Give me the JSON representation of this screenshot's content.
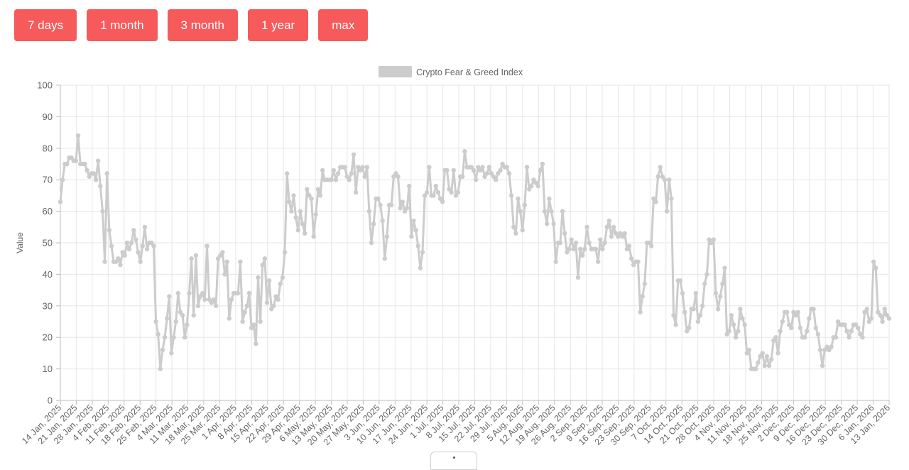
{
  "range_buttons": [
    "7 days",
    "1 month",
    "3 month",
    "1 year",
    "max"
  ],
  "colors": {
    "button_bg": "#f65a5b",
    "button_text": "#ffffff",
    "series_line": "#cccccc",
    "grid": "#e6e6e6",
    "axis_text": "#666666"
  },
  "chart_data": {
    "type": "line",
    "title": "",
    "legend": {
      "label": "Crypto Fear & Greed Index",
      "position": "top-center"
    },
    "xlabel": "",
    "ylabel": "Value",
    "ylim": [
      0,
      100
    ],
    "yticks": [
      0,
      10,
      20,
      30,
      40,
      50,
      60,
      70,
      80,
      90,
      100
    ],
    "grid": true,
    "xtick_labels": [
      "14 Jan, 2025",
      "21 Jan, 2025",
      "28 Jan, 2025",
      "4 Feb, 2025",
      "11 Feb, 2025",
      "18 Feb, 2025",
      "25 Feb, 2025",
      "4 Mar, 2025",
      "11 Mar, 2025",
      "18 Mar, 2025",
      "25 Mar, 2025",
      "1 Apr, 2025",
      "8 Apr, 2025",
      "15 Apr, 2025",
      "22 Apr, 2025",
      "29 Apr, 2025",
      "6 May, 2025",
      "13 May, 2025",
      "20 May, 2025",
      "27 May, 2025",
      "3 Jun, 2025",
      "10 Jun, 2025",
      "17 Jun, 2025",
      "24 Jun, 2025",
      "1 Jul, 2025",
      "8 Jul, 2025",
      "15 Jul, 2025",
      "22 Jul, 2025",
      "29 Jul, 2025",
      "5 Aug, 2025",
      "12 Aug, 2025",
      "19 Aug, 2025",
      "26 Aug, 2025",
      "2 Sep, 2025",
      "9 Sep, 2025",
      "16 Sep, 2025",
      "23 Sep, 2025",
      "30 Sep, 2025",
      "7 Oct, 2025",
      "14 Oct, 2025",
      "21 Oct, 2025",
      "28 Oct, 2025",
      "4 Nov, 2025",
      "11 Nov, 2025",
      "18 Nov, 2025",
      "25 Nov, 2025",
      "2 Dec, 2025",
      "9 Dec, 2025",
      "16 Dec, 2025",
      "23 Dec, 2025",
      "30 Dec, 2025",
      "6 Jan, 2026",
      "13 Jan, 2026"
    ],
    "series": [
      {
        "name": "Crypto Fear & Greed Index",
        "values": [
          63,
          70,
          75,
          75,
          77,
          77,
          76,
          76,
          84,
          75,
          75,
          75,
          73,
          71,
          72,
          72,
          70,
          76,
          68,
          60,
          44,
          72,
          54,
          49,
          44,
          44,
          45,
          43,
          47,
          46,
          50,
          48,
          50,
          54,
          51,
          47,
          44,
          49,
          55,
          48,
          50,
          50,
          49,
          25,
          21,
          10,
          16,
          20,
          26,
          33,
          15,
          20,
          25,
          34,
          28,
          27,
          20,
          24,
          34,
          45,
          27,
          46,
          30,
          33,
          34,
          32,
          49,
          32,
          31,
          32,
          30,
          45,
          46,
          47,
          40,
          44,
          26,
          32,
          34,
          34,
          34,
          44,
          25,
          28,
          30,
          34,
          23,
          24,
          18,
          39,
          25,
          43,
          45,
          31,
          38,
          29,
          30,
          33,
          32,
          37,
          39,
          47,
          72,
          63,
          60,
          65,
          58,
          54,
          60,
          56,
          53,
          67,
          65,
          64,
          52,
          59,
          67,
          65,
          73,
          70,
          70,
          70,
          70,
          73,
          70,
          72,
          74,
          74,
          74,
          71,
          70,
          72,
          78,
          66,
          74,
          73,
          74,
          71,
          74,
          60,
          50,
          56,
          64,
          64,
          62,
          57,
          45,
          52,
          62,
          62,
          71,
          72,
          71,
          61,
          63,
          60,
          61,
          68,
          52,
          57,
          54,
          49,
          42,
          47,
          65,
          66,
          74,
          65,
          65,
          68,
          66,
          64,
          63,
          73,
          73,
          67,
          66,
          73,
          65,
          66,
          71,
          71,
          79,
          74,
          74,
          74,
          73,
          70,
          74,
          73,
          74,
          71,
          72,
          74,
          72,
          71,
          70,
          72,
          73,
          75,
          74,
          74,
          72,
          65,
          55,
          53,
          64,
          60,
          54,
          62,
          74,
          67,
          68,
          70,
          69,
          68,
          73,
          75,
          60,
          56,
          64,
          60,
          56,
          44,
          50,
          50,
          60,
          53,
          47,
          48,
          51,
          48,
          50,
          39,
          48,
          46,
          48,
          55,
          50,
          48,
          48,
          48,
          44,
          51,
          48,
          50,
          55,
          57,
          52,
          55,
          53,
          52,
          53,
          52,
          53,
          48,
          49,
          45,
          43,
          44,
          44,
          28,
          33,
          37,
          50,
          50,
          49,
          64,
          63,
          71,
          74,
          71,
          70,
          60,
          70,
          64,
          27,
          24,
          38,
          38,
          34,
          28,
          22,
          23,
          29,
          29,
          34,
          25,
          27,
          30,
          37,
          40,
          51,
          50,
          51,
          34,
          29,
          33,
          37,
          42,
          21,
          22,
          27,
          24,
          20,
          22,
          29,
          26,
          24,
          15,
          16,
          10,
          10,
          10,
          12,
          14,
          15,
          11,
          14,
          11,
          13,
          19,
          20,
          15,
          22,
          25,
          28,
          28,
          24,
          23,
          28,
          27,
          28,
          23,
          20,
          20,
          22,
          26,
          29,
          29,
          23,
          21,
          16,
          11,
          16,
          17,
          16,
          17,
          20,
          20,
          25,
          24,
          24,
          24,
          22,
          20,
          22,
          24,
          24,
          23,
          21,
          20,
          28,
          29,
          25,
          26,
          44,
          42,
          28,
          27,
          25,
          29,
          27,
          26
        ]
      }
    ]
  }
}
